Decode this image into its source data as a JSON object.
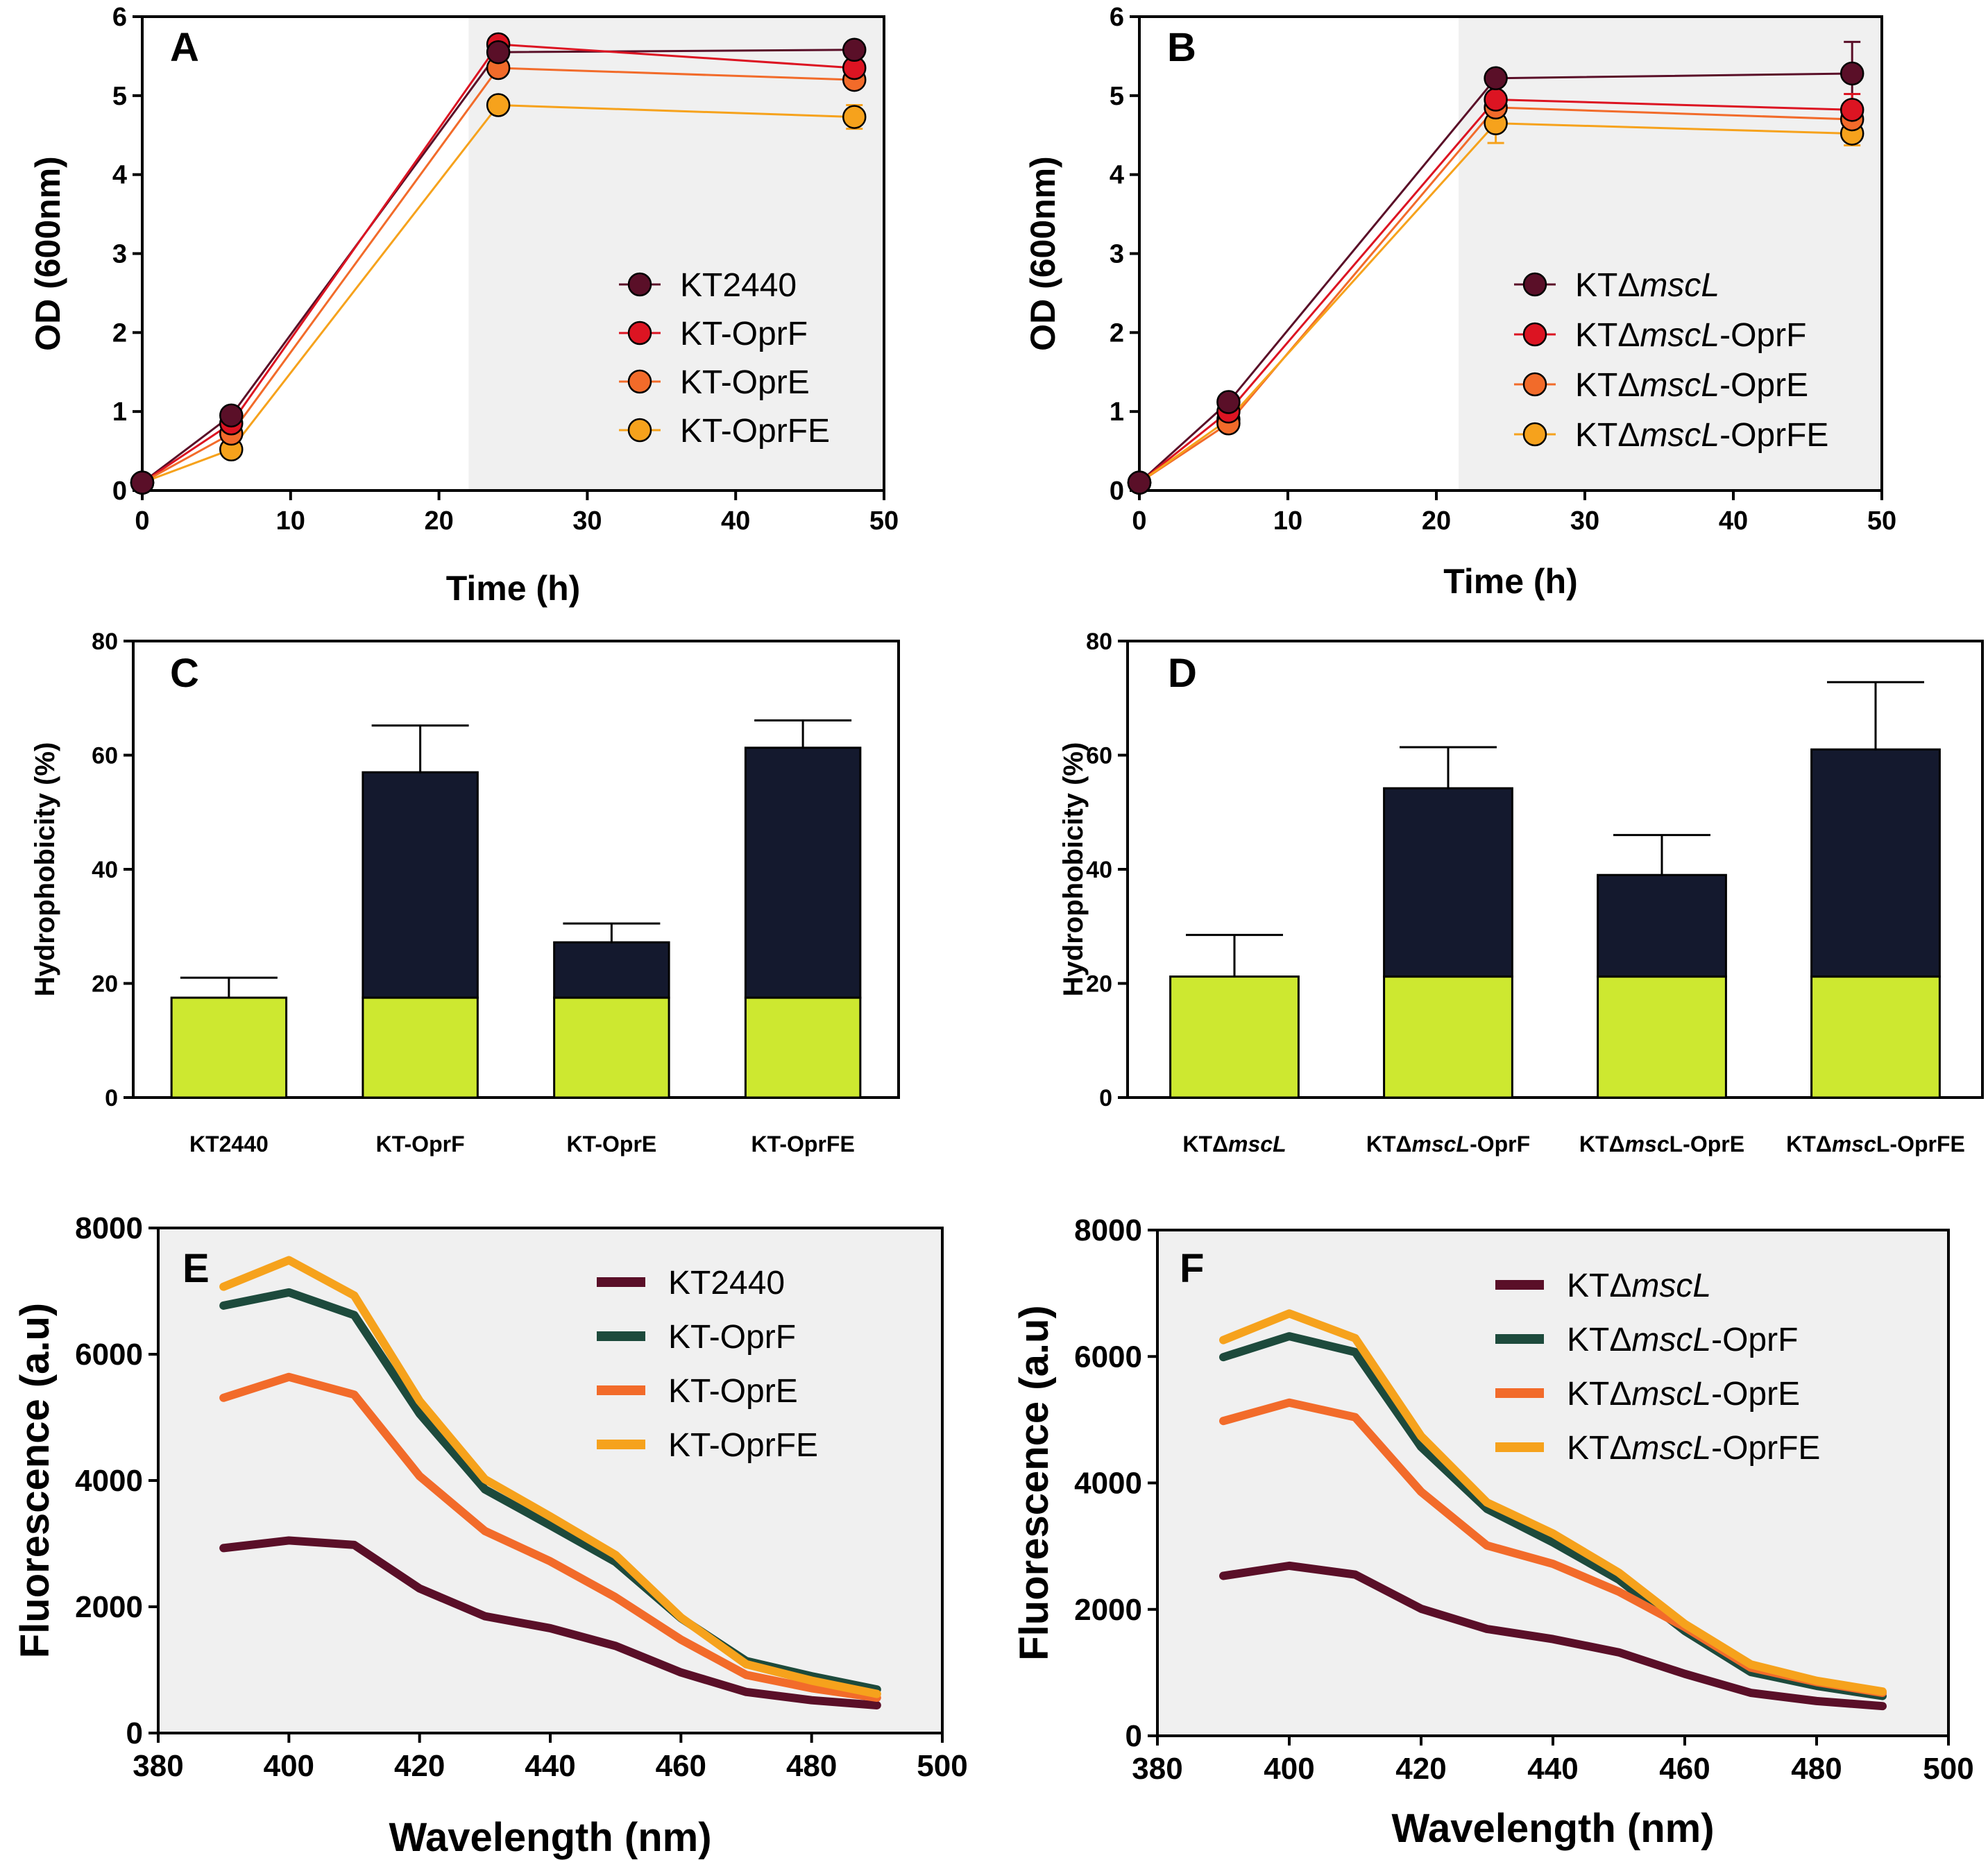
{
  "colors": {
    "kt2440": "#5a0f28",
    "oprf_dot": "#dc1422",
    "opre": "#f26b2a",
    "oprfe": "#f6a21c",
    "oprf_line": "#1d4a3c",
    "bar_green": "#cde830",
    "bar_navy": "#14192e",
    "shade": "#f0f0f0"
  },
  "chart_data": [
    {
      "id": "A",
      "type": "line",
      "label": "A",
      "xlabel": "Time (h)",
      "ylabel": "OD (600nm)",
      "xlim": [
        0,
        50
      ],
      "ylim": [
        0,
        6
      ],
      "xticks": [
        "0",
        "10",
        "20",
        "30",
        "40",
        "50"
      ],
      "yticks": [
        "0",
        "1",
        "2",
        "3",
        "4",
        "5",
        "6"
      ],
      "shade_from_x": 22,
      "x": [
        0,
        6,
        24,
        48
      ],
      "series": [
        {
          "name": "KT2440",
          "values": [
            0.1,
            0.95,
            5.55,
            5.58
          ],
          "err": [
            0,
            0,
            0,
            0
          ],
          "color": "kt2440"
        },
        {
          "name": "KT-OprF",
          "values": [
            0.1,
            0.85,
            5.65,
            5.35
          ],
          "err": [
            0,
            0,
            0,
            0
          ],
          "color": "oprf_dot"
        },
        {
          "name": "KT-OprE",
          "values": [
            0.1,
            0.72,
            5.35,
            5.2
          ],
          "err": [
            0,
            0,
            0,
            0
          ],
          "color": "opre"
        },
        {
          "name": "KT-OprFE",
          "values": [
            0.1,
            0.52,
            4.88,
            4.73
          ],
          "err": [
            0,
            0,
            0.1,
            0.15
          ],
          "color": "oprfe"
        }
      ]
    },
    {
      "id": "B",
      "type": "line",
      "label": "B",
      "xlabel": "Time (h)",
      "ylabel": "OD (600nm)",
      "xlim": [
        0,
        50
      ],
      "ylim": [
        0,
        6
      ],
      "xticks": [
        "0",
        "10",
        "20",
        "30",
        "40",
        "50"
      ],
      "yticks": [
        "0",
        "1",
        "2",
        "3",
        "4",
        "5",
        "6"
      ],
      "shade_from_x": 21.5,
      "x": [
        0,
        6,
        24,
        48
      ],
      "series": [
        {
          "name": "KTΔmscL",
          "prefix": "KTΔ",
          "italic": "mscL",
          "suffix": "",
          "values": [
            0.1,
            1.12,
            5.22,
            5.28
          ],
          "err": [
            0,
            0,
            0,
            0.4
          ],
          "color": "kt2440"
        },
        {
          "name": "KTΔmscL-OprF",
          "prefix": "KTΔ",
          "italic": "mscL",
          "suffix": "-OprF",
          "values": [
            0.1,
            1.0,
            4.95,
            4.82
          ],
          "err": [
            0,
            0,
            0,
            0.2
          ],
          "color": "oprf_dot"
        },
        {
          "name": "KTΔmscL-OprE",
          "prefix": "KTΔ",
          "italic": "mscL",
          "suffix": "-OprE",
          "values": [
            0.1,
            0.85,
            4.85,
            4.7
          ],
          "err": [
            0,
            0,
            0.15,
            0.2
          ],
          "color": "opre"
        },
        {
          "name": "KTΔmscL-OprFE",
          "prefix": "KTΔ",
          "italic": "mscL",
          "suffix": "-OprFE",
          "values": [
            0.1,
            0.9,
            4.65,
            4.52
          ],
          "err": [
            0,
            0,
            0.25,
            0.15
          ],
          "color": "oprfe"
        }
      ]
    },
    {
      "id": "C",
      "type": "bar",
      "label": "C",
      "xlabel": "",
      "ylabel": "Hydrophobicity (%)",
      "ylim": [
        0,
        80
      ],
      "yticks": [
        "0",
        "20",
        "40",
        "60",
        "80"
      ],
      "categories": [
        {
          "prefix": "KT2440",
          "italic": "",
          "suffix": ""
        },
        {
          "prefix": "KT-OprF",
          "italic": "",
          "suffix": ""
        },
        {
          "prefix": "KT-OprE",
          "italic": "",
          "suffix": ""
        },
        {
          "prefix": "KT-OprFE",
          "italic": "",
          "suffix": ""
        }
      ],
      "base_value": 17.5,
      "totals": [
        17.5,
        57,
        27.2,
        61.3
      ],
      "errors": [
        3.5,
        8.2,
        3.3,
        4.8
      ]
    },
    {
      "id": "D",
      "type": "bar",
      "label": "D",
      "xlabel": "",
      "ylabel": "Hydrophobicity (%)",
      "ylim": [
        0,
        80
      ],
      "yticks": [
        "0",
        "20",
        "40",
        "60",
        "80"
      ],
      "categories": [
        {
          "prefix": "KTΔ",
          "italic": "mscL",
          "suffix": ""
        },
        {
          "prefix": "KTΔ",
          "italic": "mscL",
          "suffix": "-OprF"
        },
        {
          "prefix": "KTΔ",
          "italic": "msc",
          "suffix": "L-OprE"
        },
        {
          "prefix": "KTΔ",
          "italic": "msc",
          "suffix": "L-OprFE"
        }
      ],
      "base_value": 21.2,
      "totals": [
        21.2,
        54.2,
        39,
        61
      ],
      "errors": [
        7.3,
        7.2,
        7,
        11.8
      ]
    },
    {
      "id": "E",
      "type": "line",
      "label": "E",
      "xlabel": "Wavelength (nm)",
      "ylabel": "Fluorescence  (a.u)",
      "xlim": [
        380,
        500
      ],
      "ylim": [
        0,
        8000
      ],
      "xticks": [
        "380",
        "400",
        "420",
        "440",
        "460",
        "480",
        "500"
      ],
      "yticks": [
        "0",
        "2000",
        "4000",
        "6000",
        "8000"
      ],
      "x": [
        390,
        400,
        410,
        420,
        430,
        440,
        450,
        460,
        470,
        480,
        490
      ],
      "series": [
        {
          "name": "KT2440",
          "values": [
            2930,
            3050,
            2980,
            2290,
            1850,
            1660,
            1380,
            960,
            650,
            520,
            440
          ],
          "color": "kt2440"
        },
        {
          "name": "KT-OprF",
          "values": [
            6770,
            6980,
            6620,
            5060,
            3860,
            3290,
            2710,
            1820,
            1140,
            900,
            690
          ],
          "color": "oprf_line"
        },
        {
          "name": "KT-OprE",
          "values": [
            5310,
            5640,
            5360,
            4070,
            3200,
            2720,
            2150,
            1480,
            920,
            710,
            560
          ],
          "color": "opre"
        },
        {
          "name": "KT-OprFE",
          "values": [
            7070,
            7490,
            6930,
            5260,
            4020,
            3430,
            2820,
            1830,
            1090,
            830,
            620
          ],
          "color": "oprfe"
        }
      ]
    },
    {
      "id": "F",
      "type": "line",
      "label": "F",
      "xlabel": "Wavelength (nm)",
      "ylabel": "Fluorescence  (a.u)",
      "xlim": [
        380,
        500
      ],
      "ylim": [
        0,
        8000
      ],
      "xticks": [
        "380",
        "400",
        "420",
        "440",
        "460",
        "480",
        "500"
      ],
      "yticks": [
        "0",
        "2000",
        "4000",
        "6000",
        "8000"
      ],
      "x": [
        390,
        400,
        410,
        420,
        430,
        440,
        450,
        460,
        470,
        480,
        490
      ],
      "series": [
        {
          "name": "KTΔmscL",
          "prefix": "KTΔ",
          "italic": "mscL",
          "suffix": "",
          "values": [
            2530,
            2690,
            2550,
            2010,
            1690,
            1530,
            1320,
            980,
            680,
            550,
            470
          ],
          "color": "kt2440"
        },
        {
          "name": "KTΔmscL-OprF",
          "prefix": "KTΔ",
          "italic": "mscL",
          "suffix": "-OprF",
          "values": [
            5990,
            6320,
            6070,
            4570,
            3590,
            3060,
            2470,
            1660,
            1010,
            790,
            630
          ],
          "color": "oprf_line"
        },
        {
          "name": "KTΔmscL-OprE",
          "prefix": "KTΔ",
          "italic": "mscL",
          "suffix": "-OprE",
          "values": [
            4980,
            5270,
            5040,
            3860,
            3010,
            2720,
            2280,
            1720,
            1080,
            850,
            680
          ],
          "color": "opre"
        },
        {
          "name": "KTΔmscL-OprFE",
          "prefix": "KTΔ",
          "italic": "mscL",
          "suffix": "-OprFE",
          "values": [
            6260,
            6680,
            6290,
            4740,
            3690,
            3200,
            2580,
            1770,
            1130,
            870,
            700
          ],
          "color": "oprfe"
        }
      ]
    }
  ]
}
